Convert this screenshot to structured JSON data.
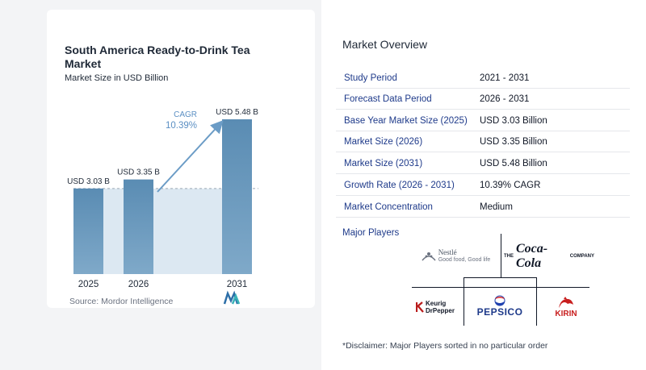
{
  "chart": {
    "title": "South America Ready-to-Drink Tea Market",
    "subtitle": "Market Size in USD Billion",
    "source": "Source:  Mordor Intelligence",
    "cagr_label": "CAGR",
    "cagr_value": "10.39%"
  },
  "chart_data": {
    "type": "bar",
    "title": "South America Ready-to-Drink Tea Market",
    "subtitle": "Market Size in USD Billion",
    "categories": [
      "2025",
      "2026",
      "2031"
    ],
    "values": [
      3.03,
      3.35,
      5.48
    ],
    "data_labels": [
      "USD 3.03 B",
      "USD 3.35 B",
      "USD 5.48 B"
    ],
    "unit": "USD Billion",
    "annotation": "CAGR 10.39%",
    "colors": {
      "bar_top": "#5a8cb3",
      "bar_bottom": "#7fa9c9",
      "area": "#dce8f2",
      "arrow": "#6b9cc6",
      "cagr_text": "#5b8fc3"
    },
    "grid": false
  },
  "overview": {
    "title": "Market Overview",
    "rows": [
      {
        "key": "Study Period",
        "value": "2021 - 2031"
      },
      {
        "key": "Forecast Data Period",
        "value": "2026 - 2031"
      },
      {
        "key": "Base Year Market Size (2025)",
        "value": "USD 3.03 Billion"
      },
      {
        "key": "Market Size (2026)",
        "value": "USD 3.35 Billion"
      },
      {
        "key": "Market Size (2031)",
        "value": "USD 5.48 Billion"
      },
      {
        "key": "Growth Rate (2026 - 2031)",
        "value": "10.39% CAGR"
      },
      {
        "key": "Market Concentration",
        "value": "Medium"
      }
    ],
    "players_title": "Major Players",
    "disclaimer": "*Disclaimer: Major Players sorted in no particular order"
  },
  "players": {
    "nestle": {
      "name": "Nestlé",
      "tagline": "Good food, Good life"
    },
    "cocacola": {
      "the": "THE",
      "name": "Coca-Cola",
      "company": "COMPANY"
    },
    "keurig": {
      "line1": "Keurig",
      "line2": "DrPepper"
    },
    "pepsico": {
      "name": "PEPSICO"
    },
    "kirin": {
      "name": "KIRIN"
    }
  }
}
